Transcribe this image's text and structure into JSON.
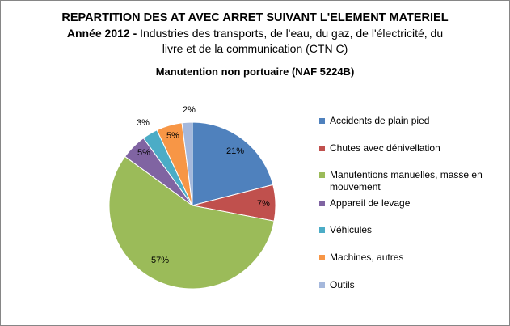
{
  "title": {
    "line1": "REPARTITION DES AT AVEC ARRET SUIVANT L'ELEMENT MATERIEL",
    "year": "Année 2012  -",
    "line2_rest": " Industries des transports, de l'eau, du gaz, de l'électricité, du",
    "line3": "livre et de la communication (CTN C)"
  },
  "subtitle": "Manutention non portuaire (NAF 5224B)",
  "chart_data": {
    "type": "pie",
    "title": "REPARTITION DES AT AVEC ARRET SUIVANT L'ELEMENT MATERIEL",
    "subtitle": "Manutention non portuaire (NAF 5224B)",
    "legend_position": "right",
    "slices": [
      {
        "label": "Accidents de plain pied",
        "value": 21,
        "display": "21%",
        "color": "#4F81BD"
      },
      {
        "label": "Chutes avec dénivellation",
        "value": 7,
        "display": "7%",
        "color": "#C0504D"
      },
      {
        "label": "Manutentions manuelles, masse en mouvement",
        "value": 57,
        "display": "57%",
        "color": "#9BBB59"
      },
      {
        "label": "Appareil de levage",
        "value": 5,
        "display": "5%",
        "color": "#8064A2"
      },
      {
        "label": "Véhicules",
        "value": 3,
        "display": "3%",
        "color": "#4BACC6"
      },
      {
        "label": "Machines, autres",
        "value": 5,
        "display": "5%",
        "color": "#F79646"
      },
      {
        "label": "Outils",
        "value": 2,
        "display": "2%",
        "color": "#A5B8DC"
      }
    ]
  }
}
